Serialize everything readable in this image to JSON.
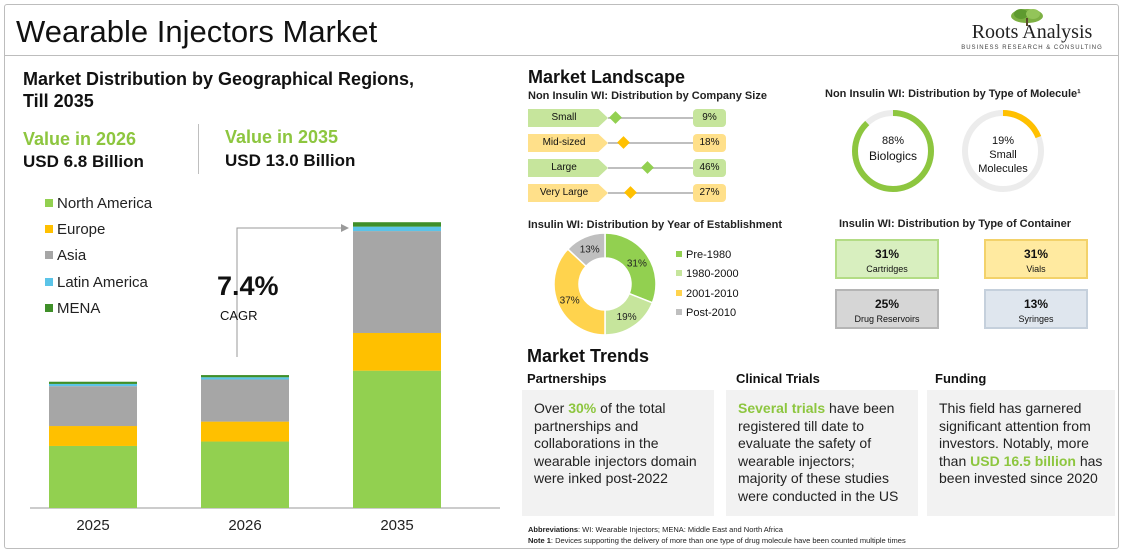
{
  "title": "Wearable Injectors Market",
  "logo": {
    "name": "Roots Analysis",
    "tagline": "BUSINESS RESEARCH & CONSULTING"
  },
  "left": {
    "heading": "Market Distribution by Geographical Regions, Till 2035",
    "heading_line1": "Market Distribution by Geographical Regions,",
    "heading_line2": "Till 2035",
    "value_2026_label": "Value in 2026",
    "value_2026": "USD 6.8 Billion",
    "value_2035_label": "Value in 2035",
    "value_2035": "USD 13.0 Billion",
    "cagr_value": "7.4%",
    "cagr_label": "CAGR"
  },
  "colors": {
    "north_america": "#92d050",
    "europe": "#ffc000",
    "asia": "#a6a6a6",
    "latin_america": "#5bc4e8",
    "mena": "#3f8f29",
    "accent_green": "#8dc63f"
  },
  "chart_data": [
    {
      "type": "bar",
      "stacked": true,
      "categories": [
        "2025",
        "2026",
        "2035"
      ],
      "series": [
        {
          "name": "North America",
          "values": [
            2.8,
            3.0,
            6.2
          ]
        },
        {
          "name": "Europe",
          "values": [
            0.9,
            0.9,
            1.7
          ]
        },
        {
          "name": "Asia",
          "values": [
            1.8,
            1.9,
            4.6
          ]
        },
        {
          "name": "Latin America",
          "values": [
            0.1,
            0.1,
            0.2
          ]
        },
        {
          "name": "MENA",
          "values": [
            0.1,
            0.1,
            0.2
          ]
        }
      ],
      "ylim": [
        0,
        13.5
      ],
      "legend": "top-left",
      "annotation": "7.4% CAGR"
    },
    {
      "type": "pie",
      "title": "Insulin WI: Distribution by Year of Establishment",
      "categories": [
        "Pre-1980",
        "1980-2000",
        "2001-2010",
        "Post-2010"
      ],
      "values": [
        31,
        19,
        37,
        13
      ],
      "labels": [
        "31%",
        "19%",
        "37%",
        "13%"
      ],
      "colors": [
        "#92d050",
        "#c6e59c",
        "#ffd34d",
        "#bfbfbf"
      ],
      "legend": "right"
    },
    {
      "type": "bar",
      "title": "Non Insulin WI: Distribution by Company Size",
      "categories": [
        "Small",
        "Mid-sized",
        "Large",
        "Very Large"
      ],
      "values": [
        9,
        18,
        46,
        27
      ],
      "labels": [
        "9%",
        "18%",
        "46%",
        "27%"
      ]
    }
  ],
  "landscape": {
    "title": "Market Landscape",
    "company_size_title": "Non Insulin WI: Distribution by Company Size",
    "company_size": [
      {
        "label": "Small",
        "pct": "9%",
        "value": 9,
        "color": "#c6e59c",
        "marker": "#92d050"
      },
      {
        "label": "Mid-sized",
        "pct": "18%",
        "value": 18,
        "color": "#ffe08a",
        "marker": "#ffc000"
      },
      {
        "label": "Large",
        "pct": "46%",
        "value": 46,
        "color": "#c6e59c",
        "marker": "#92d050"
      },
      {
        "label": "Very Large",
        "pct": "27%",
        "value": 27,
        "color": "#ffe08a",
        "marker": "#ffc000"
      }
    ],
    "molecule_title": "Non Insulin WI: Distribution by Type of Molecule¹",
    "molecule": [
      {
        "pct": "88%",
        "label": "Biologics",
        "value": 88,
        "color": "#8dc63f"
      },
      {
        "pct": "19%",
        "label": "Small Molecules",
        "label_line1": "Small",
        "label_line2": "Molecules",
        "value": 19,
        "color": "#ffc000"
      }
    ],
    "year_title": "Insulin WI: Distribution by Year of Establishment",
    "container_title": "Insulin WI: Distribution by Type of Container",
    "containers": [
      {
        "pct": "31%",
        "label": "Cartridges",
        "bg": "#d8efbf",
        "border": "#b3dc85"
      },
      {
        "pct": "31%",
        "label": "Vials",
        "bg": "#ffeaa0",
        "border": "#f3d26a"
      },
      {
        "pct": "25%",
        "label": "Drug Reservoirs",
        "bg": "#d6d6d6",
        "border": "#b5b5b5"
      },
      {
        "pct": "13%",
        "label": "Syringes",
        "bg": "#dfe6ee",
        "border": "#c5d0dc"
      }
    ]
  },
  "trends": {
    "title": "Market Trends",
    "partnerships": {
      "head": "Partnerships",
      "pre": "Over ",
      "hl": "30%",
      "post": " of the total partnerships and collaborations in the wearable injectors domain were inked post-2022"
    },
    "clinical": {
      "head": "Clinical Trials",
      "pre": "",
      "hl": "Several trials",
      "post": " have been registered till date to evaluate the safety of wearable injectors; majority of these studies were conducted in the US"
    },
    "funding": {
      "head": "Funding",
      "pre": "This field has garnered significant attention from investors. Notably, more than ",
      "hl": "USD 16.5 billion",
      "post": " has been invested since 2020"
    }
  },
  "footnotes": {
    "abbr_label": "Abbreviations",
    "abbr_text": ": WI: Wearable Injectors; MENA: Middle East and North Africa",
    "note_label": "Note 1",
    "note_text": ": Devices supporting the delivery of more than one type of drug molecule have been counted multiple times"
  }
}
